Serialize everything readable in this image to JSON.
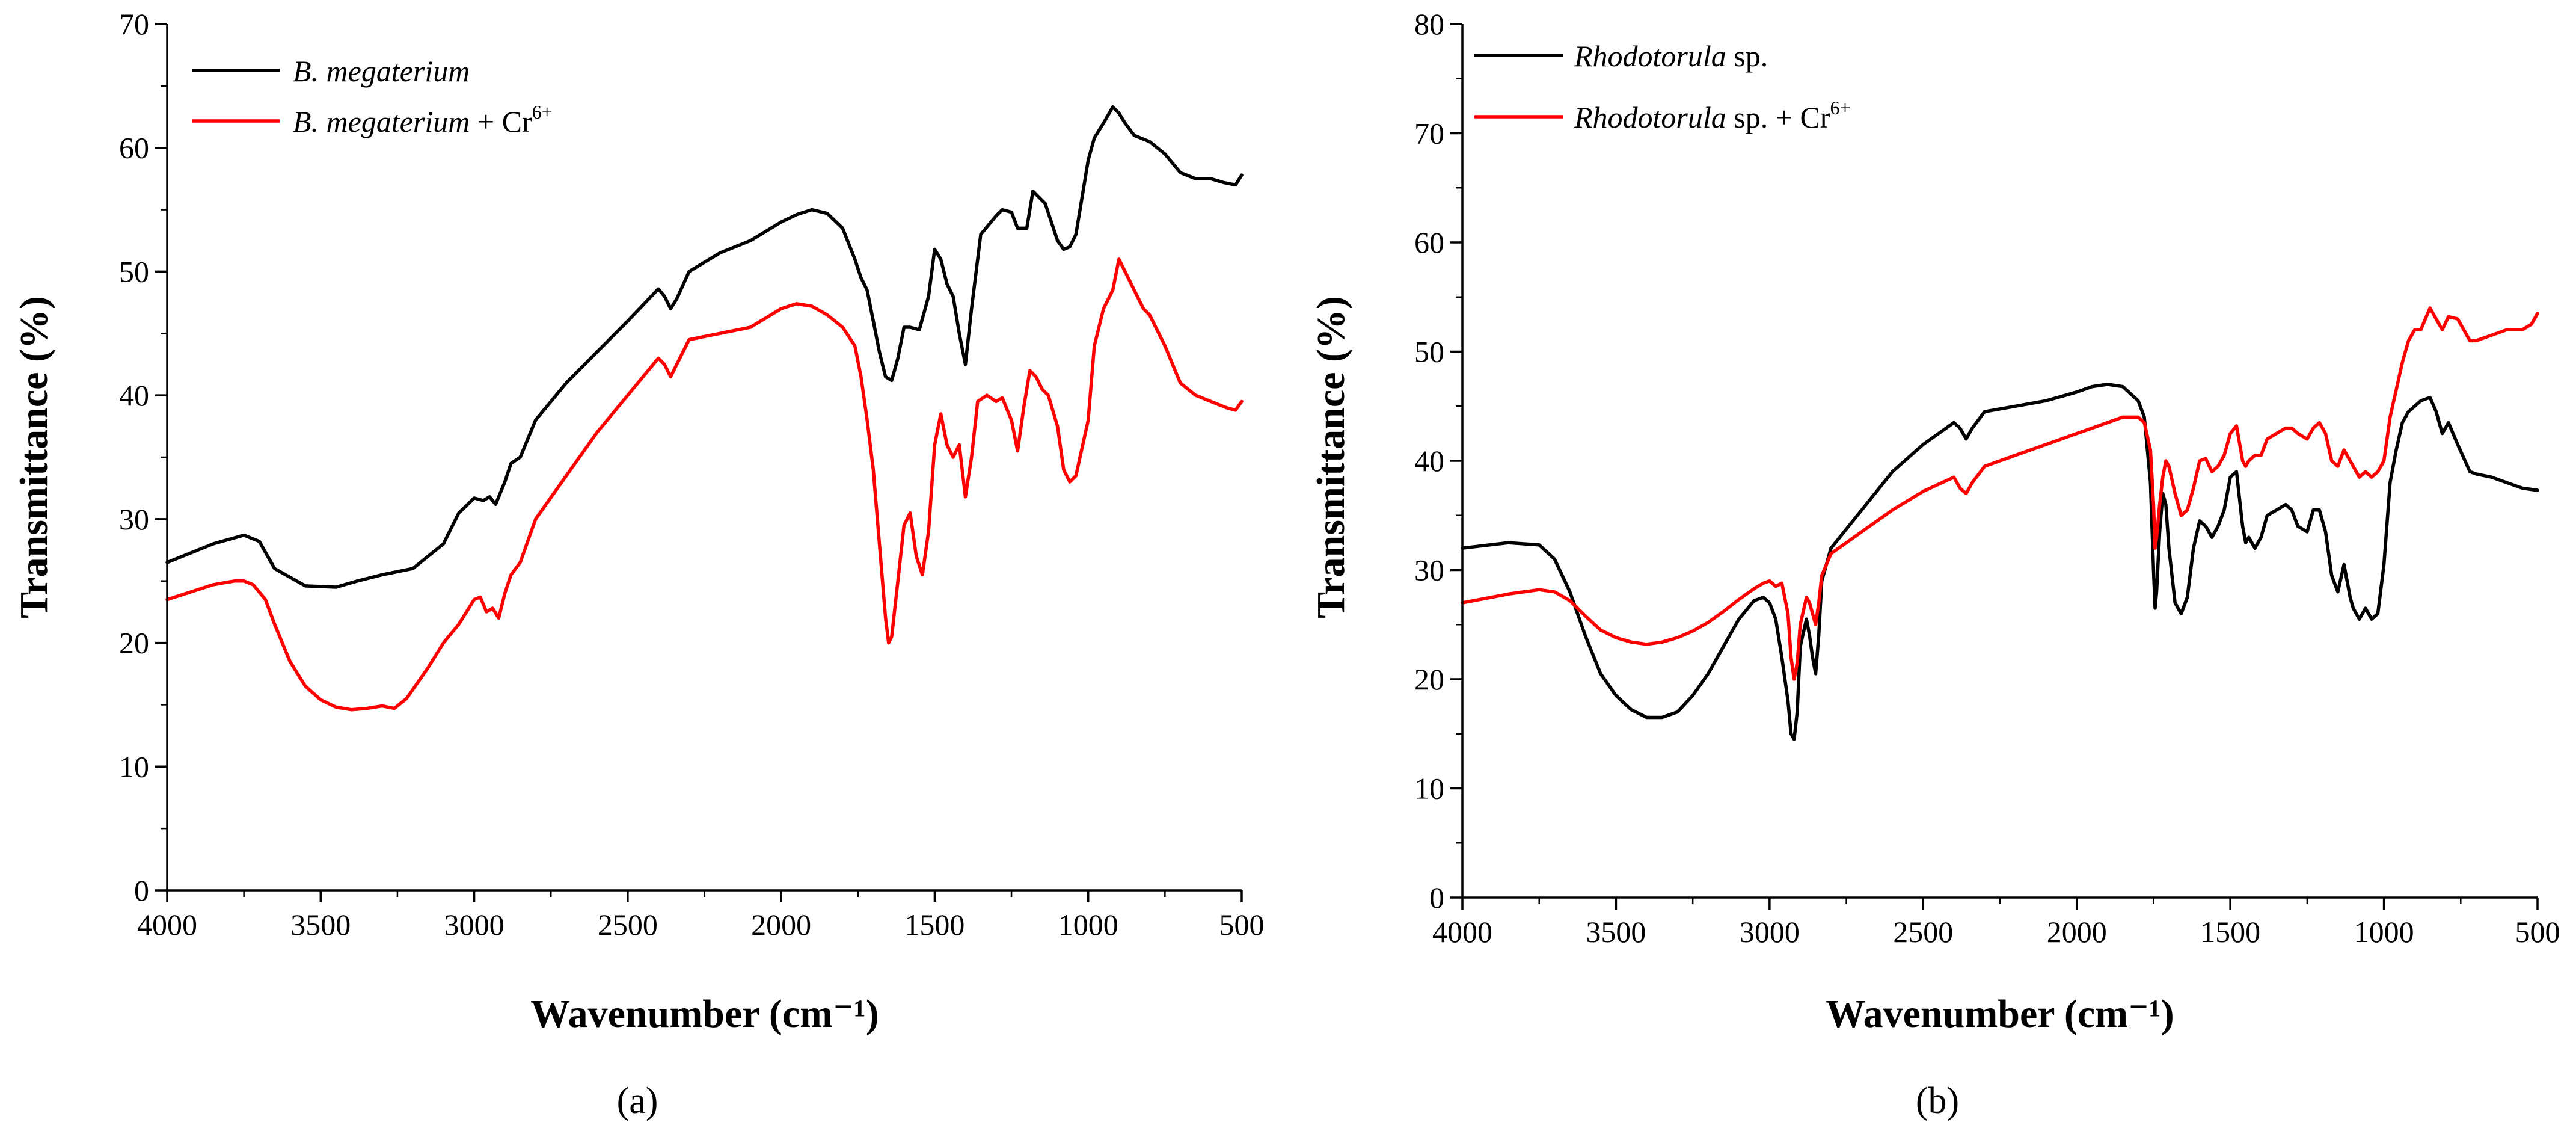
{
  "chart_data": [
    {
      "type": "line",
      "panel_label": "(a)",
      "xlabel": "Wavenumber (cm⁻¹)",
      "ylabel": "Transmittance (%)",
      "xlim": [
        4000,
        500
      ],
      "ylim": [
        0,
        70
      ],
      "xticks": [
        4000,
        3500,
        3000,
        2500,
        2000,
        1500,
        1000,
        500
      ],
      "yticks": [
        0,
        10,
        20,
        30,
        40,
        50,
        60,
        70
      ],
      "legend_position": "top-left",
      "series": [
        {
          "name": "B. megaterium",
          "legend_italic": "B. megaterium",
          "legend_suffix": "",
          "legend_superscript": "",
          "color": "#000000",
          "x": [
            4000,
            3850,
            3750,
            3700,
            3650,
            3550,
            3450,
            3380,
            3300,
            3200,
            3100,
            3050,
            3000,
            2970,
            2950,
            2930,
            2900,
            2880,
            2850,
            2800,
            2700,
            2600,
            2500,
            2400,
            2380,
            2360,
            2340,
            2300,
            2200,
            2100,
            2000,
            1950,
            1900,
            1850,
            1800,
            1760,
            1740,
            1720,
            1700,
            1680,
            1660,
            1640,
            1620,
            1600,
            1580,
            1550,
            1520,
            1500,
            1480,
            1460,
            1440,
            1420,
            1400,
            1380,
            1350,
            1300,
            1280,
            1250,
            1230,
            1200,
            1180,
            1160,
            1140,
            1100,
            1080,
            1060,
            1040,
            1000,
            980,
            950,
            920,
            900,
            880,
            850,
            800,
            750,
            700,
            650,
            600,
            560,
            520,
            500
          ],
          "y": [
            26.5,
            28,
            28.7,
            28.2,
            26,
            24.6,
            24.5,
            25,
            25.5,
            26,
            28,
            30.5,
            31.7,
            31.5,
            31.8,
            31.2,
            33,
            34.5,
            35,
            38,
            41,
            43.5,
            46,
            48.6,
            48,
            47,
            47.8,
            50,
            51.5,
            52.5,
            54,
            54.6,
            55,
            54.7,
            53.5,
            51,
            49.5,
            48.5,
            46,
            43.5,
            41.5,
            41.2,
            43,
            45.5,
            45.5,
            45.3,
            48,
            51.8,
            51,
            49,
            48,
            45,
            42.5,
            47,
            53,
            54.5,
            55,
            54.8,
            53.5,
            53.5,
            56.5,
            56,
            55.5,
            52.5,
            51.8,
            52,
            53,
            59,
            60.8,
            62,
            63.3,
            62.8,
            62,
            61,
            60.5,
            59.5,
            58,
            57.5,
            57.5,
            57.2,
            57,
            57.8
          ]
        },
        {
          "name": "B. megaterium + Cr6+",
          "legend_italic": "B. megaterium",
          "legend_suffix": " + Cr",
          "legend_superscript": "6+",
          "color": "#ff0000",
          "x": [
            4000,
            3850,
            3780,
            3750,
            3720,
            3680,
            3650,
            3600,
            3550,
            3500,
            3450,
            3400,
            3350,
            3300,
            3260,
            3220,
            3150,
            3100,
            3050,
            3000,
            2980,
            2960,
            2940,
            2920,
            2900,
            2880,
            2850,
            2800,
            2700,
            2600,
            2500,
            2400,
            2380,
            2360,
            2340,
            2300,
            2200,
            2100,
            2000,
            1950,
            1900,
            1850,
            1800,
            1760,
            1740,
            1720,
            1700,
            1680,
            1660,
            1650,
            1640,
            1620,
            1600,
            1580,
            1560,
            1540,
            1520,
            1500,
            1480,
            1460,
            1440,
            1420,
            1400,
            1380,
            1360,
            1330,
            1300,
            1280,
            1250,
            1230,
            1210,
            1190,
            1170,
            1150,
            1130,
            1100,
            1080,
            1060,
            1040,
            1000,
            980,
            950,
            920,
            900,
            880,
            850,
            820,
            800,
            750,
            700,
            650,
            600,
            550,
            520,
            500
          ],
          "y": [
            23.5,
            24.7,
            25,
            25,
            24.7,
            23.5,
            21.5,
            18.5,
            16.5,
            15.4,
            14.8,
            14.6,
            14.7,
            14.9,
            14.7,
            15.5,
            18,
            20,
            21.5,
            23.5,
            23.7,
            22.5,
            22.8,
            22,
            24,
            25.5,
            26.5,
            30,
            33.5,
            37,
            40,
            43,
            42.5,
            41.5,
            42.5,
            44.5,
            45,
            45.5,
            47,
            47.4,
            47.2,
            46.5,
            45.5,
            44,
            41.5,
            38,
            34,
            28,
            22,
            20,
            20.5,
            25,
            29.5,
            30.5,
            27,
            25.5,
            29,
            36,
            38.5,
            36,
            35,
            36,
            31.8,
            35,
            39.5,
            40,
            39.5,
            39.8,
            38,
            35.5,
            39,
            42,
            41.5,
            40.5,
            40,
            37.5,
            34,
            33,
            33.5,
            38,
            44,
            47,
            48.5,
            51,
            50,
            48.5,
            47,
            46.5,
            44,
            41,
            40,
            39.5,
            39,
            38.8,
            39.5
          ]
        }
      ]
    },
    {
      "type": "line",
      "panel_label": "(b)",
      "xlabel": "Wavenumber (cm⁻¹)",
      "ylabel": "Transmittance (%)",
      "xlim": [
        4000,
        500
      ],
      "ylim": [
        0,
        80
      ],
      "xticks": [
        4000,
        3500,
        3000,
        2500,
        2000,
        1500,
        1000,
        500
      ],
      "yticks": [
        0,
        10,
        20,
        30,
        40,
        50,
        60,
        70,
        80
      ],
      "legend_position": "top-left",
      "series": [
        {
          "name": "Rhodotorula sp.",
          "legend_italic": "Rhodotorula",
          "legend_suffix": " sp.",
          "legend_superscript": "",
          "color": "#000000",
          "x": [
            4000,
            3850,
            3750,
            3700,
            3650,
            3600,
            3550,
            3500,
            3450,
            3400,
            3350,
            3300,
            3250,
            3200,
            3150,
            3100,
            3050,
            3020,
            3000,
            2980,
            2960,
            2940,
            2930,
            2920,
            2910,
            2900,
            2880,
            2870,
            2860,
            2850,
            2840,
            2830,
            2800,
            2700,
            2600,
            2500,
            2400,
            2380,
            2360,
            2340,
            2300,
            2200,
            2100,
            2000,
            1950,
            1900,
            1850,
            1800,
            1780,
            1760,
            1750,
            1745,
            1740,
            1730,
            1720,
            1710,
            1700,
            1680,
            1660,
            1640,
            1620,
            1600,
            1580,
            1560,
            1540,
            1520,
            1500,
            1480,
            1460,
            1450,
            1440,
            1420,
            1400,
            1380,
            1350,
            1320,
            1300,
            1280,
            1250,
            1230,
            1210,
            1190,
            1170,
            1150,
            1130,
            1110,
            1100,
            1080,
            1060,
            1040,
            1020,
            1000,
            980,
            960,
            940,
            920,
            900,
            880,
            850,
            830,
            810,
            790,
            760,
            720,
            700,
            650,
            600,
            550,
            500
          ],
          "y": [
            32,
            32.5,
            32.3,
            31,
            28,
            24,
            20.5,
            18.5,
            17.2,
            16.5,
            16.5,
            17,
            18.5,
            20.5,
            23,
            25.5,
            27.2,
            27.5,
            27,
            25.5,
            22,
            18,
            15,
            14.5,
            17,
            23,
            25.5,
            24,
            22,
            20.5,
            24,
            29,
            32,
            35.5,
            39,
            41.5,
            43.5,
            43,
            42,
            43,
            44.5,
            45,
            45.5,
            46.3,
            46.8,
            47,
            46.8,
            45.5,
            44,
            38,
            30,
            26.5,
            28,
            33.5,
            37,
            36,
            32,
            27,
            26,
            27.5,
            32,
            34.5,
            34,
            33,
            34,
            35.5,
            38.5,
            39,
            34,
            32.5,
            33,
            32,
            33,
            35,
            35.5,
            36,
            35.5,
            34,
            33.5,
            35.5,
            35.5,
            33.5,
            29.5,
            28,
            30.5,
            27.5,
            26.5,
            25.5,
            26.5,
            25.5,
            26,
            30.5,
            38,
            41,
            43.5,
            44.5,
            45,
            45.5,
            45.8,
            44.5,
            42.5,
            43.5,
            41.5,
            39,
            38.8,
            38.5,
            38,
            37.5,
            37.3
          ]
        },
        {
          "name": "Rhodotorula sp. + Cr6+",
          "legend_italic": "Rhodotorula",
          "legend_suffix": " sp. + Cr",
          "legend_superscript": "6+",
          "color": "#ff0000",
          "x": [
            4000,
            3850,
            3750,
            3700,
            3650,
            3600,
            3550,
            3500,
            3450,
            3400,
            3350,
            3300,
            3250,
            3200,
            3150,
            3100,
            3050,
            3020,
            3000,
            2980,
            2960,
            2940,
            2930,
            2920,
            2910,
            2900,
            2880,
            2870,
            2860,
            2850,
            2840,
            2830,
            2800,
            2700,
            2600,
            2500,
            2400,
            2380,
            2360,
            2340,
            2300,
            2200,
            2100,
            2000,
            1950,
            1900,
            1850,
            1800,
            1780,
            1760,
            1750,
            1745,
            1740,
            1730,
            1720,
            1710,
            1700,
            1680,
            1660,
            1640,
            1620,
            1600,
            1580,
            1560,
            1540,
            1520,
            1500,
            1480,
            1460,
            1450,
            1440,
            1420,
            1400,
            1380,
            1350,
            1320,
            1300,
            1280,
            1250,
            1230,
            1210,
            1190,
            1170,
            1150,
            1130,
            1110,
            1100,
            1080,
            1060,
            1040,
            1020,
            1000,
            980,
            960,
            940,
            920,
            900,
            880,
            850,
            830,
            810,
            790,
            760,
            720,
            700,
            650,
            600,
            550,
            520,
            500
          ],
          "y": [
            27,
            27.8,
            28.2,
            28,
            27.2,
            25.8,
            24.5,
            23.8,
            23.4,
            23.2,
            23.4,
            23.8,
            24.4,
            25.2,
            26.2,
            27.3,
            28.3,
            28.8,
            29,
            28.5,
            28.8,
            26,
            22,
            20,
            21.5,
            25,
            27.5,
            27,
            26,
            25,
            27,
            29.5,
            31.5,
            33.5,
            35.5,
            37.2,
            38.5,
            37.5,
            37,
            38,
            39.5,
            40.5,
            41.5,
            42.5,
            43,
            43.5,
            44,
            44,
            43.5,
            41,
            36,
            32,
            33,
            36,
            38.5,
            40,
            39.5,
            37,
            35,
            35.5,
            37.5,
            40,
            40.2,
            39,
            39.5,
            40.5,
            42.5,
            43.2,
            40,
            39.5,
            40,
            40.5,
            40.5,
            42,
            42.5,
            43,
            43,
            42.5,
            42,
            43,
            43.5,
            42.5,
            40,
            39.5,
            41,
            40,
            39.5,
            38.5,
            39,
            38.5,
            39,
            40,
            44,
            46.5,
            49,
            51,
            52,
            52,
            54,
            53,
            52,
            53.2,
            53,
            51,
            51,
            51.5,
            52,
            52,
            52.5,
            53.5
          ]
        }
      ]
    }
  ]
}
